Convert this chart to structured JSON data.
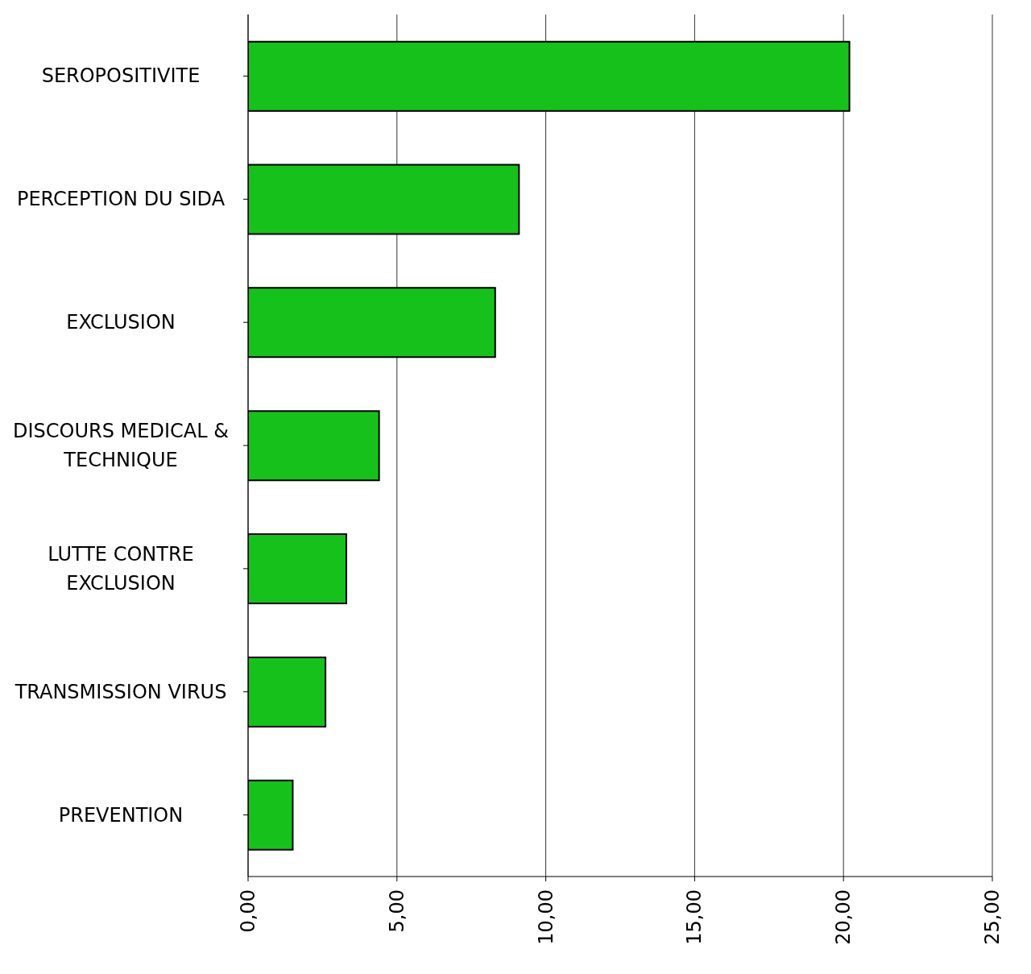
{
  "chart_data": {
    "type": "bar",
    "orientation": "horizontal",
    "categories": [
      "SEROPOSITIVITE",
      "PERCEPTION DU SIDA",
      "EXCLUSION",
      "DISCOURS MEDICAL & TECHNIQUE",
      "LUTTE CONTRE EXCLUSION",
      "TRANSMISSION VIRUS",
      "PREVENTION"
    ],
    "values": [
      20.2,
      9.1,
      8.3,
      4.4,
      3.3,
      2.6,
      1.5
    ],
    "color": "#17c11c",
    "xlim": [
      0,
      25
    ],
    "xticks": [
      {
        "value": 0,
        "label": "0,00"
      },
      {
        "value": 5,
        "label": "5,00"
      },
      {
        "value": 10,
        "label": "10,00"
      },
      {
        "value": 15,
        "label": "15,00"
      },
      {
        "value": 20,
        "label": "20,00"
      },
      {
        "value": 25,
        "label": "25,00"
      }
    ],
    "grid": "x"
  }
}
